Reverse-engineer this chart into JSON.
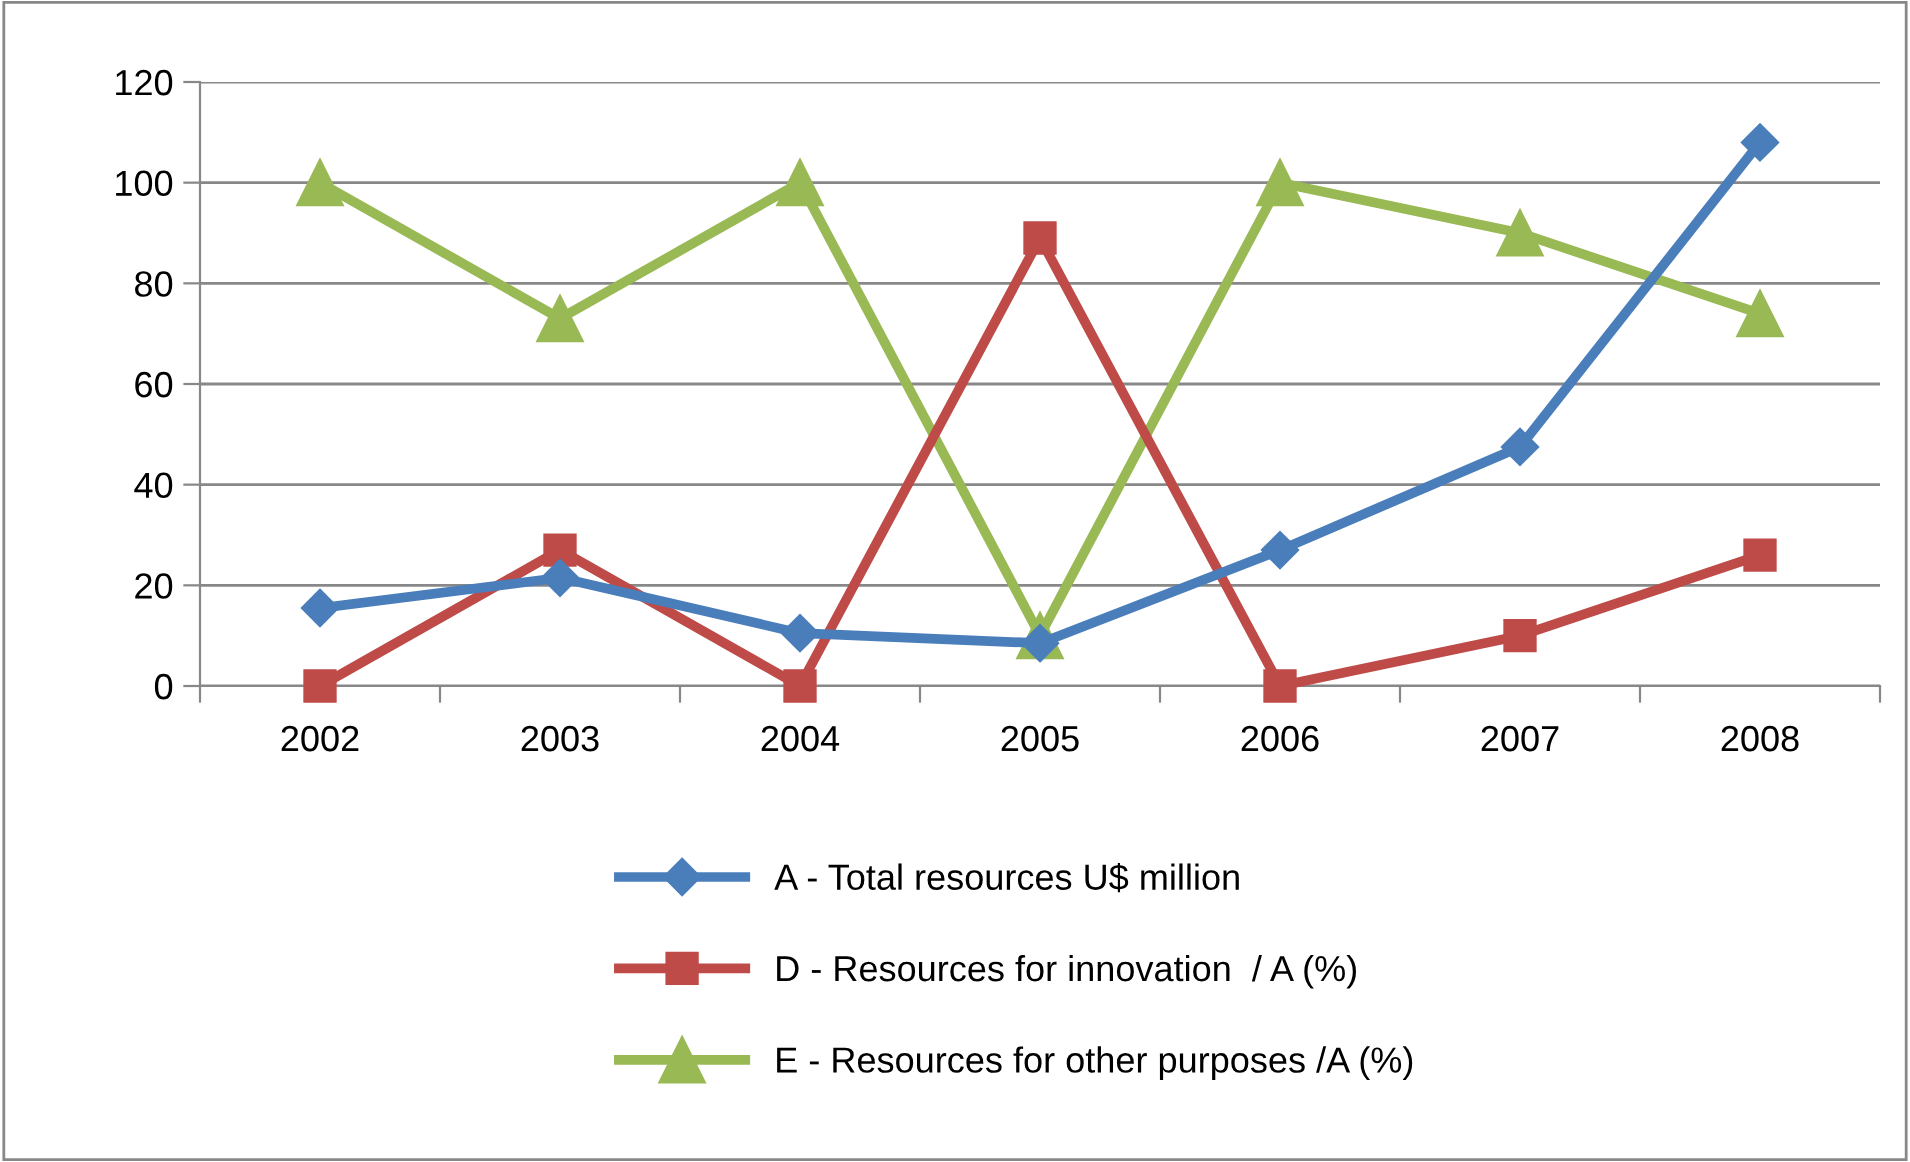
{
  "chart_data": {
    "type": "line",
    "categories": [
      "2002",
      "2003",
      "2004",
      "2005",
      "2006",
      "2007",
      "2008"
    ],
    "series": [
      {
        "name": "A - Total resources U$ million",
        "color": "#4a7ebb",
        "marker": "diamond",
        "values": [
          15.5,
          21.5,
          10.5,
          8.5,
          27,
          47.5,
          108
        ]
      },
      {
        "name": "D - Resources for innovation  / A (%)",
        "color": "#be4b48",
        "marker": "square",
        "values": [
          0,
          27,
          0,
          89,
          0,
          10,
          26
        ]
      },
      {
        "name": "E - Resources for other purposes /A (%)",
        "color": "#98b954",
        "marker": "triangle",
        "values": [
          100,
          73,
          100,
          10,
          100,
          90,
          74
        ]
      }
    ],
    "ylim": [
      0,
      120
    ],
    "yticks": [
      0,
      20,
      40,
      60,
      80,
      100,
      120
    ],
    "grid": "y",
    "legend": "bottom",
    "line_style": "solid"
  }
}
